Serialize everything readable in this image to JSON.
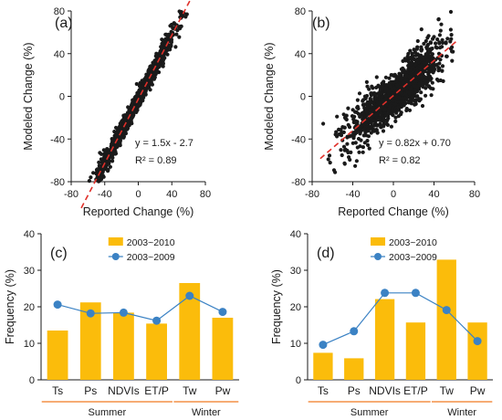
{
  "chart_data": [
    {
      "type": "scatter",
      "panel_label": "(a)",
      "xlabel": "Reported Change (%)",
      "ylabel": "Modeled Change (%)",
      "xlim": [
        -80,
        80
      ],
      "ylim": [
        -80,
        80
      ],
      "xticks": [
        "-80",
        "-40",
        "0",
        "40",
        "80"
      ],
      "yticks": [
        "80",
        "40",
        "0",
        "-40",
        "-80"
      ],
      "point_color": "#1a1a1a",
      "fit": {
        "slope": 1.5,
        "intercept": -2.7,
        "color": "#e0302a",
        "x_range": [
          -68,
          64
        ]
      },
      "equation": "y = 1.5x - 2.7",
      "r2": "R² = 0.89",
      "cloud": {
        "x_center": -3,
        "x_spread": 24,
        "x_min": -70,
        "x_max": 65,
        "noise": 3.6,
        "count": 1400,
        "seed": 11
      }
    },
    {
      "type": "scatter",
      "panel_label": "(b)",
      "xlabel": "Reported Change (%)",
      "ylabel": "Modeled Change (%)",
      "xlim": [
        -80,
        80
      ],
      "ylim": [
        -80,
        80
      ],
      "xticks": [
        "-80",
        "-40",
        "0",
        "40",
        "80"
      ],
      "yticks": [
        "80",
        "40",
        "0",
        "-40",
        "-80"
      ],
      "point_color": "#1a1a1a",
      "fit": {
        "slope": 0.82,
        "intercept": 0.7,
        "color": "#e0302a",
        "x_range": [
          -72,
          62
        ]
      },
      "equation": "y = 0.82x + 0.70",
      "r2": "R² = 0.82",
      "cloud": {
        "x_center": 2,
        "x_spread": 24,
        "x_min": -72,
        "x_max": 60,
        "noise": 8.5,
        "count": 1400,
        "seed": 23
      }
    },
    {
      "type": "bar",
      "panel_label": "(c)",
      "categories": [
        "Ts",
        "Ps",
        "NDVIs",
        "ET/P",
        "Tw",
        "Pw"
      ],
      "groups": [
        {
          "label": "Summer",
          "from": 0,
          "to": 3
        },
        {
          "label": "Winter",
          "from": 4,
          "to": 5
        }
      ],
      "ylabel": "Frequency (%)",
      "ylim": [
        0,
        40
      ],
      "yticks": [
        "0",
        "10",
        "20",
        "30",
        "40"
      ],
      "series": [
        {
          "name": "2003~2010",
          "kind": "bar",
          "color": "#fbbc0b",
          "values": [
            13.5,
            21.2,
            18.4,
            15.4,
            26.5,
            17.0
          ]
        },
        {
          "name": "2003~2009",
          "kind": "line",
          "color": "#3b82c4",
          "values": [
            20.6,
            18.2,
            18.4,
            16.2,
            23.0,
            18.6
          ]
        }
      ],
      "legend": "top-center"
    },
    {
      "type": "bar",
      "panel_label": "(d)",
      "categories": [
        "Ts",
        "Ps",
        "NDVIs",
        "ET/P",
        "Tw",
        "Pw"
      ],
      "groups": [
        {
          "label": "Summer",
          "from": 0,
          "to": 3
        },
        {
          "label": "Winter",
          "from": 4,
          "to": 5
        }
      ],
      "ylabel": "Frequency (%)",
      "ylim": [
        0,
        40
      ],
      "yticks": [
        "0",
        "10",
        "20",
        "30",
        "40"
      ],
      "series": [
        {
          "name": "2003~2010",
          "kind": "bar",
          "color": "#fbbc0b",
          "values": [
            7.4,
            5.9,
            22.1,
            15.7,
            32.9,
            15.7
          ]
        },
        {
          "name": "2003~2009",
          "kind": "line",
          "color": "#3b82c4",
          "values": [
            9.6,
            13.3,
            23.8,
            23.8,
            19.1,
            10.6
          ]
        }
      ],
      "legend": "top-center"
    }
  ],
  "colors": {
    "axis": "#1a1a1a",
    "group_line": "#f07a20"
  }
}
